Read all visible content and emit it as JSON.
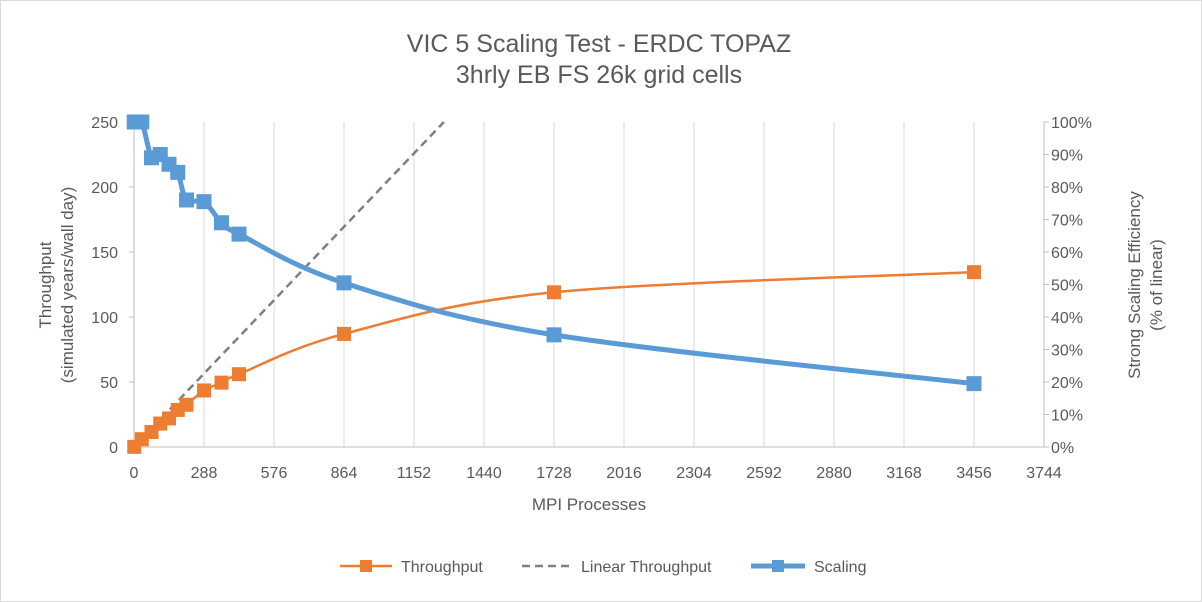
{
  "chart_data": {
    "type": "line",
    "title": "VIC 5 Scaling Test - ERDC TOPAZ",
    "subtitle": "3hrly EB FS 26k grid cells",
    "xlabel": "MPI Processes",
    "ylabel_left_line1": "Throughput",
    "ylabel_left_line2": "(simulated years/wall day)",
    "ylabel_right_line1": "Strong Scaling Efficiency",
    "ylabel_right_line2": "(% of linear)",
    "xlim": [
      0,
      3744
    ],
    "ylim_left": [
      0,
      250
    ],
    "ylim_right": [
      0,
      100
    ],
    "x_ticks": [
      0,
      288,
      576,
      864,
      1152,
      1440,
      1728,
      2016,
      2304,
      2592,
      2880,
      3168,
      3456,
      3744
    ],
    "y_left_ticks": [
      0,
      50,
      100,
      150,
      200,
      250
    ],
    "y_right_ticks": [
      "0%",
      "10%",
      "20%",
      "30%",
      "40%",
      "50%",
      "60%",
      "70%",
      "80%",
      "90%",
      "100%"
    ],
    "grid": "vertical",
    "legend_position": "bottom",
    "series": [
      {
        "name": "Throughput",
        "axis": "left",
        "color": "#ed7d31",
        "style": "smooth-line-square-markers",
        "x": [
          1,
          32,
          72,
          108,
          144,
          180,
          216,
          288,
          360,
          432,
          864,
          1728,
          3456
        ],
        "y": [
          0.1,
          6,
          11.5,
          18,
          22,
          28.5,
          32.5,
          43.5,
          49.5,
          56,
          87,
          119,
          134.5
        ]
      },
      {
        "name": "Linear Throughput",
        "axis": "left",
        "color": "#7f7f7f",
        "style": "dashed-line",
        "x": [
          0,
          1275
        ],
        "y": [
          0,
          250
        ]
      },
      {
        "name": "Scaling",
        "axis": "right",
        "color": "#5b9bd5",
        "style": "smooth-line-square-markers",
        "x": [
          1,
          32,
          72,
          108,
          144,
          180,
          216,
          288,
          360,
          432,
          864,
          1728,
          3456
        ],
        "y": [
          100,
          100,
          89,
          90,
          87,
          84.5,
          76,
          75.5,
          69,
          65.5,
          50.5,
          34.5,
          19.5
        ]
      }
    ]
  }
}
